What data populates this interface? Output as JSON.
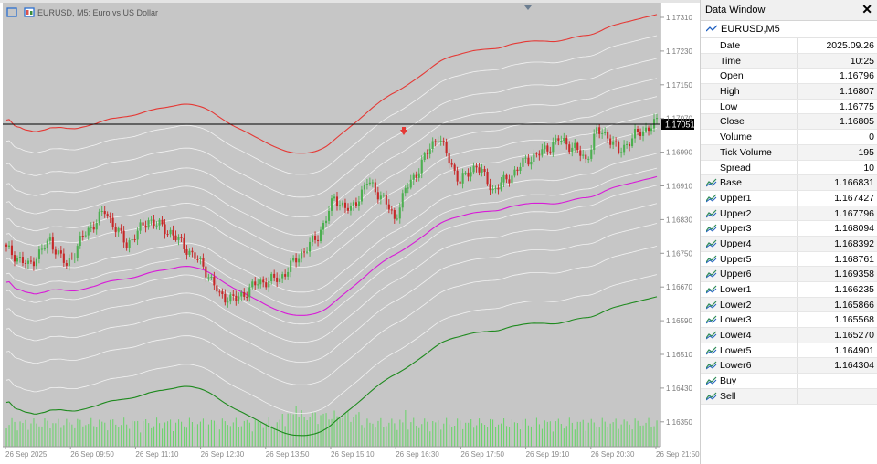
{
  "chart": {
    "symbol_title": "EURUSD, M5:  Euro vs US Dollar",
    "current_price": "1.17051",
    "colors": {
      "background": "#c6c6c6",
      "bull": "#4caf50",
      "bear": "#c62828",
      "upper_band": "#e53935",
      "base_band": "#d81bd8",
      "lower_band": "#1e8a1e",
      "envelope": "#f2f2f2",
      "volume": "#6fd36f"
    },
    "price_axis_labels": [
      "1.17310",
      "1.17230",
      "1.17150",
      "1.17070",
      "1.16990",
      "1.16910",
      "1.16830",
      "1.16750",
      "1.16670",
      "1.16590",
      "1.16510",
      "1.16430",
      "1.16350"
    ],
    "time_axis_labels": [
      "26 Sep 2025",
      "26 Sep 09:50",
      "26 Sep 11:10",
      "26 Sep 12:30",
      "26 Sep 13:50",
      "26 Sep 15:10",
      "26 Sep 16:30",
      "26 Sep 17:50",
      "26 Sep 19:10",
      "26 Sep 20:30",
      "26 Sep 21:50"
    ]
  },
  "data_window": {
    "title": "Data Window",
    "symbol": "EURUSD,M5",
    "rows": [
      {
        "label": "Date",
        "value": "2025.09.26",
        "icon": ""
      },
      {
        "label": "Time",
        "value": "10:25",
        "icon": ""
      },
      {
        "label": "Open",
        "value": "1.16796",
        "icon": ""
      },
      {
        "label": "High",
        "value": "1.16807",
        "icon": ""
      },
      {
        "label": "Low",
        "value": "1.16775",
        "icon": ""
      },
      {
        "label": "Close",
        "value": "1.16805",
        "icon": ""
      },
      {
        "label": "Volume",
        "value": "0",
        "icon": ""
      },
      {
        "label": "Tick Volume",
        "value": "195",
        "icon": ""
      },
      {
        "label": "Spread",
        "value": "10",
        "icon": ""
      },
      {
        "label": "Base",
        "value": "1.166831",
        "icon": "indicator-icon"
      },
      {
        "label": "Upper1",
        "value": "1.167427",
        "icon": "indicator-icon"
      },
      {
        "label": "Upper2",
        "value": "1.167796",
        "icon": "indicator-icon"
      },
      {
        "label": "Upper3",
        "value": "1.168094",
        "icon": "indicator-icon"
      },
      {
        "label": "Upper4",
        "value": "1.168392",
        "icon": "indicator-icon"
      },
      {
        "label": "Upper5",
        "value": "1.168761",
        "icon": "indicator-icon"
      },
      {
        "label": "Upper6",
        "value": "1.169358",
        "icon": "indicator-icon"
      },
      {
        "label": "Lower1",
        "value": "1.166235",
        "icon": "indicator-icon"
      },
      {
        "label": "Lower2",
        "value": "1.165866",
        "icon": "indicator-icon"
      },
      {
        "label": "Lower3",
        "value": "1.165568",
        "icon": "indicator-icon"
      },
      {
        "label": "Lower4",
        "value": "1.165270",
        "icon": "indicator-icon"
      },
      {
        "label": "Lower5",
        "value": "1.164901",
        "icon": "indicator-icon"
      },
      {
        "label": "Lower6",
        "value": "1.164304",
        "icon": "indicator-icon"
      },
      {
        "label": "Buy",
        "value": "",
        "icon": "indicator-icon"
      },
      {
        "label": "Sell",
        "value": "",
        "icon": "indicator-icon"
      }
    ]
  }
}
